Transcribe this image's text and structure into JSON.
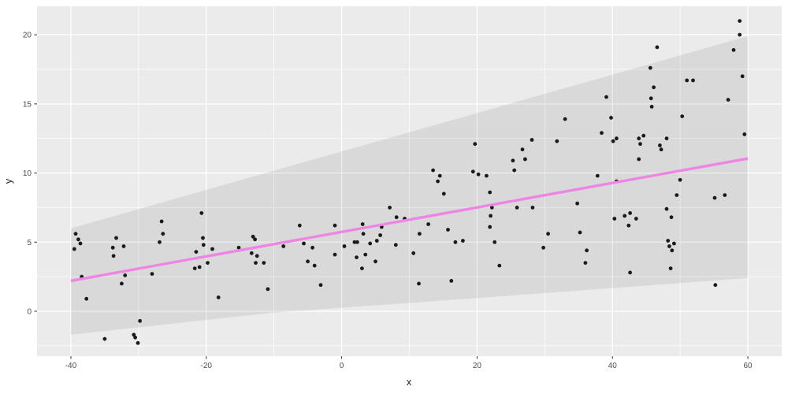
{
  "figure": {
    "background": "#FFFFFF"
  },
  "chart_data": {
    "type": "scatter",
    "title": "",
    "xlabel": "x",
    "ylabel": "y",
    "legend": "none",
    "grid": true,
    "x_range": [
      -45,
      65
    ],
    "y_range": [
      -3.25,
      22.06
    ],
    "x_ticks": [
      -40,
      -20,
      0,
      20,
      40,
      60
    ],
    "x_minor_ticks": [
      -30,
      -10,
      10,
      30,
      50
    ],
    "y_ticks": [
      0,
      5,
      10,
      15,
      20
    ],
    "y_minor_ticks": [
      -2.5,
      2.5,
      7.5,
      12.5,
      17.5
    ],
    "panel_color": "#EBEBEB",
    "grid_color": "#FFFFFF",
    "point_color": "#1A1A1A",
    "tick_label_color": "#4D4D4D",
    "axis_title_color": "#1A1A1A",
    "tick_mark_color": "#333333",
    "smooth_line": {
      "color": "#EE85E5",
      "width": 3.4,
      "points": [
        [
          -40,
          2.2
        ],
        [
          60,
          11.05
        ]
      ]
    },
    "band": {
      "fill": "rgba(0,0,0,0.075)",
      "upper": [
        [
          -40,
          6.0
        ],
        [
          60,
          19.9
        ]
      ],
      "lower": [
        [
          -40,
          -1.7
        ],
        [
          -10,
          -0.1
        ],
        [
          20,
          0.95
        ],
        [
          60,
          2.4
        ]
      ]
    },
    "points": [
      [
        -39.5,
        4.5
      ],
      [
        -39.3,
        5.6
      ],
      [
        -38.9,
        5.2
      ],
      [
        -38.6,
        4.9
      ],
      [
        -38.4,
        2.5
      ],
      [
        -37.7,
        0.9
      ],
      [
        -35.0,
        -2.0
      ],
      [
        -33.8,
        4.6
      ],
      [
        -33.7,
        4.0
      ],
      [
        -33.3,
        5.3
      ],
      [
        -32.5,
        2.0
      ],
      [
        -32.2,
        4.7
      ],
      [
        -32.0,
        2.6
      ],
      [
        -30.7,
        -1.7
      ],
      [
        -30.5,
        -1.9
      ],
      [
        -30.1,
        -2.3
      ],
      [
        -29.8,
        -0.7
      ],
      [
        -28.0,
        2.7
      ],
      [
        -26.9,
        5.0
      ],
      [
        -26.6,
        6.5
      ],
      [
        -26.4,
        5.6
      ],
      [
        -21.7,
        3.1
      ],
      [
        -21.5,
        4.3
      ],
      [
        -21.0,
        3.2
      ],
      [
        -20.7,
        7.1
      ],
      [
        -20.5,
        5.3
      ],
      [
        -20.4,
        4.8
      ],
      [
        -19.8,
        3.5
      ],
      [
        -19.1,
        4.5
      ],
      [
        -18.2,
        1.0
      ],
      [
        -15.2,
        4.6
      ],
      [
        -13.3,
        4.2
      ],
      [
        -13.1,
        5.4
      ],
      [
        -12.8,
        5.2
      ],
      [
        -12.7,
        3.5
      ],
      [
        -12.5,
        4.0
      ],
      [
        -11.5,
        3.5
      ],
      [
        -10.9,
        1.6
      ],
      [
        -8.6,
        4.7
      ],
      [
        -6.2,
        6.2
      ],
      [
        -5.6,
        4.9
      ],
      [
        -5.0,
        3.6
      ],
      [
        -4.3,
        4.6
      ],
      [
        -4.0,
        3.3
      ],
      [
        -3.1,
        1.9
      ],
      [
        -1.0,
        6.2
      ],
      [
        -1.0,
        4.1
      ],
      [
        0.4,
        4.7
      ],
      [
        1.9,
        5.0
      ],
      [
        2.2,
        3.9
      ],
      [
        2.3,
        5.0
      ],
      [
        3.0,
        3.1
      ],
      [
        3.1,
        6.3
      ],
      [
        3.2,
        5.6
      ],
      [
        3.5,
        4.1
      ],
      [
        4.2,
        4.9
      ],
      [
        5.0,
        3.6
      ],
      [
        5.2,
        5.1
      ],
      [
        5.7,
        5.5
      ],
      [
        5.9,
        6.1
      ],
      [
        7.1,
        7.5
      ],
      [
        8.0,
        4.8
      ],
      [
        8.1,
        6.8
      ],
      [
        9.3,
        6.7
      ],
      [
        10.6,
        4.2
      ],
      [
        11.4,
        2.0
      ],
      [
        11.5,
        5.6
      ],
      [
        12.8,
        6.3
      ],
      [
        13.5,
        10.2
      ],
      [
        14.2,
        9.4
      ],
      [
        14.5,
        9.8
      ],
      [
        15.1,
        8.5
      ],
      [
        15.7,
        5.9
      ],
      [
        16.2,
        2.2
      ],
      [
        16.8,
        5.0
      ],
      [
        17.9,
        5.1
      ],
      [
        19.4,
        10.1
      ],
      [
        19.7,
        12.1
      ],
      [
        20.2,
        9.9
      ],
      [
        21.4,
        9.8
      ],
      [
        21.9,
        8.6
      ],
      [
        21.9,
        6.1
      ],
      [
        22.0,
        6.9
      ],
      [
        22.2,
        7.5
      ],
      [
        22.6,
        5.0
      ],
      [
        23.3,
        3.3
      ],
      [
        25.3,
        10.9
      ],
      [
        25.5,
        10.2
      ],
      [
        25.9,
        7.5
      ],
      [
        26.7,
        11.7
      ],
      [
        27.1,
        11.0
      ],
      [
        28.1,
        12.4
      ],
      [
        28.2,
        7.5
      ],
      [
        29.8,
        4.6
      ],
      [
        30.5,
        5.6
      ],
      [
        31.8,
        12.3
      ],
      [
        33.0,
        13.9
      ],
      [
        34.8,
        7.8
      ],
      [
        35.2,
        5.7
      ],
      [
        36.0,
        3.5
      ],
      [
        36.2,
        4.4
      ],
      [
        37.8,
        9.8
      ],
      [
        38.4,
        12.9
      ],
      [
        39.1,
        15.5
      ],
      [
        39.8,
        14.0
      ],
      [
        40.1,
        12.3
      ],
      [
        40.3,
        6.7
      ],
      [
        40.6,
        12.5
      ],
      [
        40.6,
        9.4
      ],
      [
        41.8,
        6.9
      ],
      [
        42.4,
        6.2
      ],
      [
        42.6,
        7.1
      ],
      [
        42.6,
        2.8
      ],
      [
        43.5,
        6.7
      ],
      [
        43.9,
        12.5
      ],
      [
        43.9,
        11.0
      ],
      [
        44.1,
        12.1
      ],
      [
        44.6,
        12.7
      ],
      [
        45.6,
        17.6
      ],
      [
        45.7,
        15.4
      ],
      [
        45.8,
        14.8
      ],
      [
        46.1,
        16.2
      ],
      [
        46.6,
        19.1
      ],
      [
        47.0,
        12.0
      ],
      [
        47.2,
        11.7
      ],
      [
        48.0,
        12.5
      ],
      [
        48.0,
        7.4
      ],
      [
        48.2,
        5.1
      ],
      [
        48.4,
        4.7
      ],
      [
        48.6,
        3.1
      ],
      [
        48.7,
        6.8
      ],
      [
        48.8,
        4.4
      ],
      [
        49.1,
        4.9
      ],
      [
        49.5,
        8.4
      ],
      [
        50.0,
        9.5
      ],
      [
        50.3,
        14.1
      ],
      [
        51.0,
        16.7
      ],
      [
        51.9,
        16.7
      ],
      [
        55.1,
        8.2
      ],
      [
        55.2,
        1.9
      ],
      [
        56.6,
        8.4
      ],
      [
        57.1,
        15.3
      ],
      [
        57.9,
        18.9
      ],
      [
        58.8,
        21.0
      ],
      [
        58.8,
        20.0
      ],
      [
        59.2,
        17.0
      ],
      [
        59.5,
        12.8
      ]
    ]
  }
}
